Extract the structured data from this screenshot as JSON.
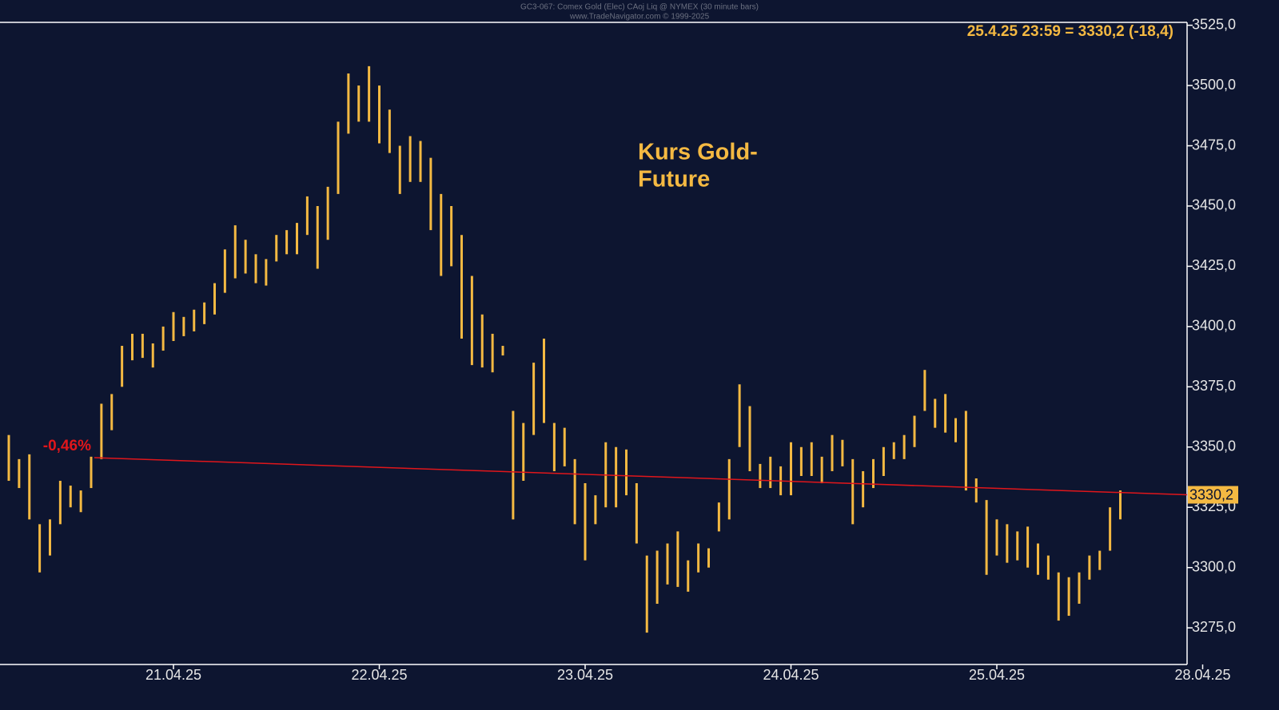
{
  "chart_data": {
    "type": "ohlc",
    "title": "GC3-067: Comex Gold (Elec) CAoj Liq @ NYMEX (30 minute bars)",
    "subtitle": "www.TradeNavigator.com © 1999-2025",
    "header": "25.4.25 23:59 = 3330,2 (-18,4)",
    "annotation": [
      "Kurs Gold-",
      "Future"
    ],
    "color": "#f4b942",
    "categories": [
      null,
      null,
      null,
      null,
      null,
      null,
      null,
      null,
      null,
      null,
      null,
      null,
      null,
      null,
      null,
      null,
      "21.04.25",
      null,
      null,
      null,
      null,
      null,
      null,
      null,
      null,
      null,
      null,
      null,
      null,
      null,
      null,
      null,
      null,
      null,
      null,
      null,
      "22.04.25",
      null,
      null,
      null,
      null,
      null,
      null,
      null,
      null,
      null,
      null,
      null,
      null,
      null,
      null,
      null,
      null,
      null,
      null,
      null,
      "23.04.25",
      null,
      null,
      null,
      null,
      null,
      null,
      null,
      null,
      null,
      null,
      null,
      null,
      null,
      null,
      null,
      null,
      null,
      null,
      null,
      "24.04.25",
      null,
      null,
      null,
      null,
      null,
      null,
      null,
      null,
      null,
      null,
      null,
      null,
      null,
      null,
      null,
      null,
      null,
      null,
      null,
      "25.04.25",
      null,
      null,
      null,
      null,
      null,
      null,
      null,
      null,
      null,
      null,
      null,
      null,
      null,
      null,
      null,
      null,
      null,
      null,
      null,
      "28.04.25"
    ],
    "high": [
      3355,
      3345,
      3347,
      3318,
      3320,
      3336,
      3334,
      3332,
      3346,
      3368,
      3372,
      3392,
      3397,
      3397,
      3393,
      3400,
      3406,
      3404,
      3407,
      3410,
      3418,
      3432,
      3442,
      3436,
      3430,
      3428,
      3438,
      3440,
      3443,
      3454,
      3450,
      3458,
      3485,
      3505,
      3500,
      3508,
      3500,
      3490,
      3475,
      3479,
      3477,
      3470,
      3455,
      3450,
      3438,
      3421,
      3405,
      3397,
      3392,
      3365,
      3360,
      3385,
      3395,
      3360,
      3358,
      3345,
      3335,
      3330,
      3352,
      3350,
      3349,
      3335,
      3305,
      3307,
      3310,
      3315,
      3303,
      3310,
      3308,
      3327,
      3345,
      3376,
      3367,
      3343,
      3346,
      3342,
      3352,
      3350,
      3352,
      3346,
      3355,
      3353,
      3345,
      3340,
      3345,
      3350,
      3352,
      3355,
      3363,
      3382,
      3370,
      3372,
      3362,
      3365,
      3337,
      3328,
      3320,
      3318,
      3315,
      3317,
      3310,
      3305,
      3298,
      3296,
      3298,
      3305,
      3307,
      3325,
      3332,
      null,
      null,
      null,
      null,
      null,
      null,
      null,
      null
    ],
    "low": [
      3336,
      3333,
      3320,
      3298,
      3305,
      3318,
      3325,
      3323,
      3333,
      3345,
      3357,
      3375,
      3386,
      3387,
      3383,
      3390,
      3394,
      3396,
      3398,
      3401,
      3405,
      3414,
      3420,
      3422,
      3418,
      3417,
      3427,
      3430,
      3430,
      3438,
      3424,
      3436,
      3455,
      3480,
      3485,
      3485,
      3476,
      3472,
      3455,
      3460,
      3460,
      3440,
      3421,
      3425,
      3395,
      3384,
      3383,
      3381,
      3388,
      3320,
      3336,
      3355,
      3360,
      3340,
      3342,
      3318,
      3303,
      3318,
      3325,
      3325,
      3330,
      3310,
      3273,
      3285,
      3293,
      3292,
      3290,
      3298,
      3300,
      3315,
      3320,
      3350,
      3340,
      3333,
      3333,
      3330,
      3330,
      3338,
      3338,
      3335,
      3340,
      3342,
      3318,
      3325,
      3333,
      3338,
      3345,
      3345,
      3350,
      3365,
      3358,
      3356,
      3352,
      3332,
      3327,
      3297,
      3305,
      3302,
      3303,
      3300,
      3297,
      3295,
      3278,
      3280,
      3285,
      3295,
      3299,
      3307,
      3320,
      null,
      null,
      null,
      null,
      null,
      null,
      null,
      null
    ],
    "ylim": [
      3259.8,
      3526.2
    ],
    "yticks": [
      {
        "value": 3275,
        "label": "3275,0"
      },
      {
        "value": 3300,
        "label": "3300,0"
      },
      {
        "value": 3325,
        "label": "3325,0"
      },
      {
        "value": 3350,
        "label": "3350,0"
      },
      {
        "value": 3375,
        "label": "3375,0"
      },
      {
        "value": 3400,
        "label": "3400,0"
      },
      {
        "value": 3425,
        "label": "3425,0"
      },
      {
        "value": 3450,
        "label": "3450,0"
      },
      {
        "value": 3475,
        "label": "3475,0"
      },
      {
        "value": 3500,
        "label": "3500,0"
      },
      {
        "value": 3525,
        "label": "3525,0"
      }
    ],
    "reference_line": {
      "start": 3345.6,
      "end": 3330.2,
      "label": "-0,46%",
      "color": "#e0161b"
    },
    "last_price": {
      "value": 3330.2,
      "label": "3330,2"
    }
  }
}
